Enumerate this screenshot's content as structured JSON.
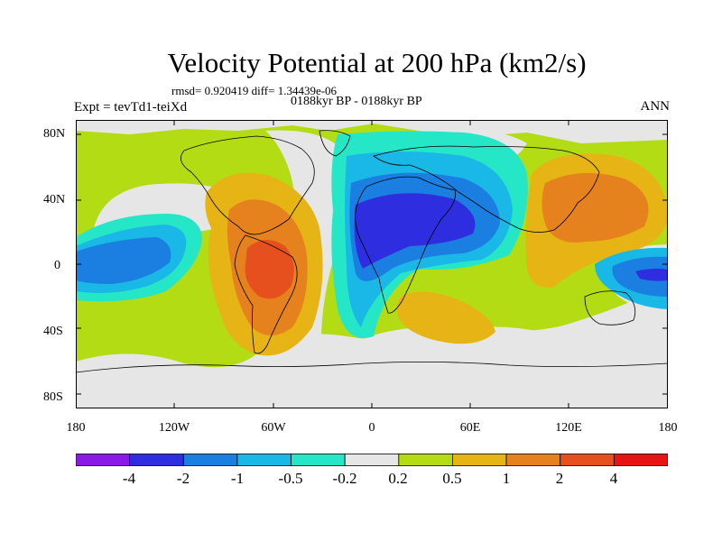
{
  "chart_data": {
    "type": "map",
    "title": "Velocity Potential at 200 hPa (km2/s)",
    "stats": "rmsd= 0.920419 diff= 1.34439e-06",
    "experiment": "Expt = tevTd1-teiXd",
    "period": "0188kyr BP - 0188kyr BP",
    "season": "ANN",
    "y_ticks": [
      "80N",
      "40N",
      "0",
      "40S",
      "80S"
    ],
    "x_ticks": [
      "180",
      "120W",
      "60W",
      "0",
      "60E",
      "120E",
      "180"
    ],
    "lon_range": [
      -180,
      180
    ],
    "lat_range": [
      -90,
      90
    ],
    "contour_levels": [
      "-4",
      "-2",
      "-1",
      "-0.5",
      "-0.2",
      "0.2",
      "0.5",
      "1",
      "2",
      "4"
    ],
    "colors": [
      "#8a1ae6",
      "#2e2ee0",
      "#1a7fe0",
      "#1ab8e6",
      "#26e6c8",
      "#e6e6e6",
      "#b4dc14",
      "#e6b414",
      "#e6821e",
      "#e6501e",
      "#e61414"
    ],
    "background_color": "#b4dc14",
    "centers": [
      {
        "name": "central-pacific-negative",
        "lon": -172,
        "lat": -4,
        "value": -1.0
      },
      {
        "name": "south-america-positive",
        "lon": -62,
        "lat": -5,
        "value": 2.5
      },
      {
        "name": "africa-arabia-negative",
        "lon": 30,
        "lat": 15,
        "value": -2.2
      },
      {
        "name": "southern-africa-positive",
        "lon": 45,
        "lat": -30,
        "value": 0.7
      },
      {
        "name": "west-pacific-positive",
        "lon": 140,
        "lat": 22,
        "value": 1.2
      },
      {
        "name": "dateline-negative",
        "lon": 170,
        "lat": -4,
        "value": -1.5
      }
    ]
  }
}
